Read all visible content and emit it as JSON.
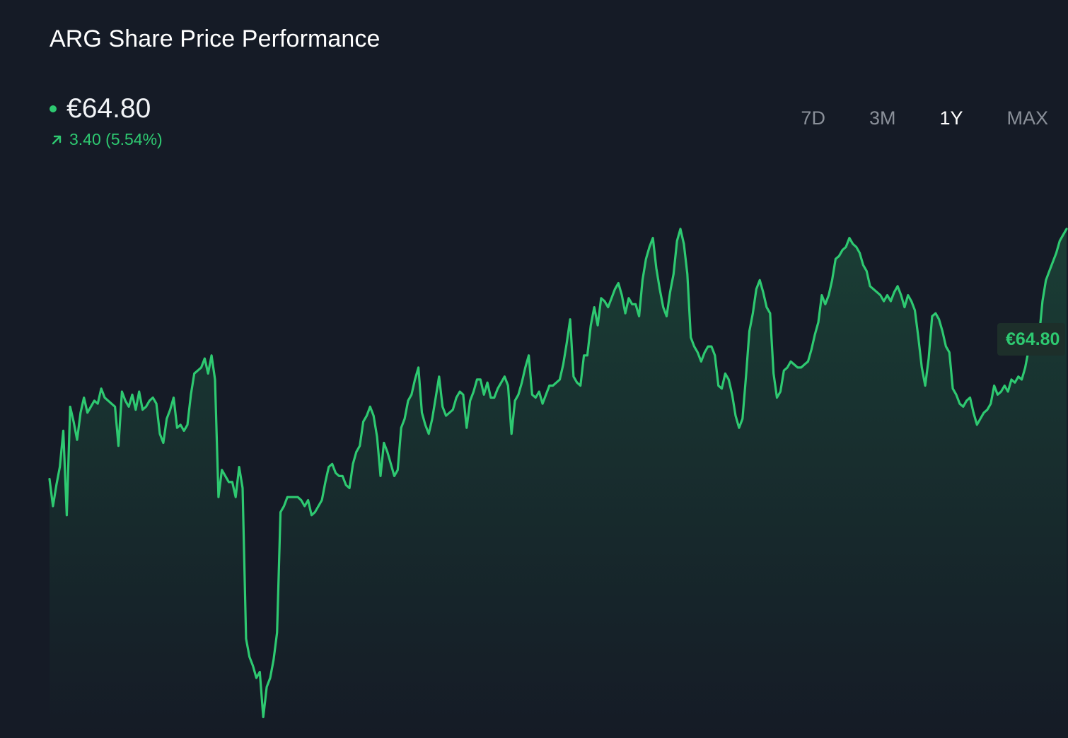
{
  "header": {
    "title": "ARG Share Price Performance"
  },
  "price": {
    "current": "€64.80",
    "change": "3.40 (5.54%)",
    "direction_icon": "arrow-up-right-icon",
    "status_icon": "live-dot-icon"
  },
  "range_tabs": [
    {
      "label": "7D",
      "active": false
    },
    {
      "label": "3M",
      "active": false
    },
    {
      "label": "1Y",
      "active": true
    },
    {
      "label": "MAX",
      "active": false
    }
  ],
  "colors": {
    "background": "#151b26",
    "accent": "#2ec971",
    "inactive_tab": "#8a9099"
  },
  "chart_data": {
    "type": "area",
    "grid": false,
    "last_value_label": "€64.80",
    "ylim": [
      48.0,
      67.0
    ],
    "values": [
      56.5,
      55.6,
      56.3,
      56.9,
      58.1,
      55.3,
      58.9,
      58.4,
      57.8,
      58.7,
      59.2,
      58.7,
      58.9,
      59.1,
      59.0,
      59.5,
      59.2,
      59.1,
      59.0,
      58.9,
      57.6,
      59.4,
      59.1,
      58.9,
      59.3,
      58.8,
      59.4,
      58.8,
      58.9,
      59.1,
      59.2,
      59.0,
      58.0,
      57.7,
      58.5,
      58.8,
      59.2,
      58.2,
      58.3,
      58.1,
      58.3,
      59.3,
      60.0,
      60.1,
      60.2,
      60.5,
      60.0,
      60.6,
      59.8,
      55.9,
      56.8,
      56.6,
      56.4,
      56.4,
      55.9,
      56.9,
      56.2,
      51.2,
      50.6,
      50.3,
      49.9,
      50.1,
      48.6,
      49.6,
      49.9,
      50.5,
      51.4,
      55.4,
      55.6,
      55.9,
      55.9,
      55.9,
      55.9,
      55.8,
      55.6,
      55.8,
      55.3,
      55.4,
      55.6,
      55.8,
      56.4,
      56.9,
      57.0,
      56.7,
      56.6,
      56.6,
      56.3,
      56.2,
      57.0,
      57.4,
      57.6,
      58.4,
      58.6,
      58.9,
      58.6,
      57.9,
      56.6,
      57.7,
      57.4,
      57.0,
      56.6,
      56.8,
      58.2,
      58.5,
      59.1,
      59.3,
      59.8,
      60.2,
      58.7,
      58.3,
      58.0,
      58.5,
      59.2,
      59.9,
      58.9,
      58.6,
      58.7,
      58.8,
      59.2,
      59.4,
      59.3,
      58.2,
      59.1,
      59.4,
      59.8,
      59.8,
      59.3,
      59.7,
      59.2,
      59.2,
      59.5,
      59.7,
      59.9,
      59.6,
      58.0,
      59.1,
      59.3,
      59.7,
      60.2,
      60.6,
      59.3,
      59.2,
      59.4,
      59.0,
      59.3,
      59.6,
      59.6,
      59.7,
      59.8,
      60.3,
      61.0,
      61.8,
      59.9,
      59.7,
      59.6,
      60.6,
      60.6,
      61.6,
      62.2,
      61.6,
      62.5,
      62.4,
      62.2,
      62.5,
      62.8,
      63.0,
      62.6,
      62.0,
      62.5,
      62.3,
      62.3,
      61.9,
      63.1,
      63.8,
      64.2,
      64.5,
      63.5,
      62.8,
      62.2,
      61.9,
      62.7,
      63.3,
      64.4,
      64.8,
      64.3,
      63.3,
      61.2,
      60.9,
      60.7,
      60.4,
      60.7,
      60.9,
      60.9,
      60.6,
      59.6,
      59.5,
      60.0,
      59.8,
      59.3,
      58.6,
      58.2,
      58.5,
      59.9,
      61.4,
      62.0,
      62.8,
      63.1,
      62.7,
      62.2,
      62.0,
      60.0,
      59.2,
      59.4,
      60.1,
      60.2,
      60.4,
      60.3,
      60.2,
      60.2,
      60.3,
      60.4,
      60.8,
      61.3,
      61.7,
      62.6,
      62.3,
      62.6,
      63.1,
      63.8,
      63.9,
      64.1,
      64.2,
      64.5,
      64.3,
      64.2,
      64.0,
      63.6,
      63.4,
      62.9,
      62.8,
      62.7,
      62.6,
      62.4,
      62.6,
      62.4,
      62.7,
      62.9,
      62.6,
      62.2,
      62.6,
      62.4,
      62.1,
      61.2,
      60.2,
      59.6,
      60.5,
      61.9,
      62.0,
      61.8,
      61.4,
      60.9,
      60.7,
      59.5,
      59.3,
      59.0,
      58.9,
      59.1,
      59.2,
      58.7,
      58.3,
      58.5,
      58.7,
      58.8,
      59.0,
      59.6,
      59.3,
      59.4,
      59.6,
      59.4,
      59.8,
      59.7,
      59.9,
      59.8,
      60.2,
      60.8,
      61.3,
      61.6,
      61.2,
      62.4,
      63.1,
      63.4,
      63.7,
      64.0,
      64.4,
      64.6,
      64.8
    ]
  }
}
